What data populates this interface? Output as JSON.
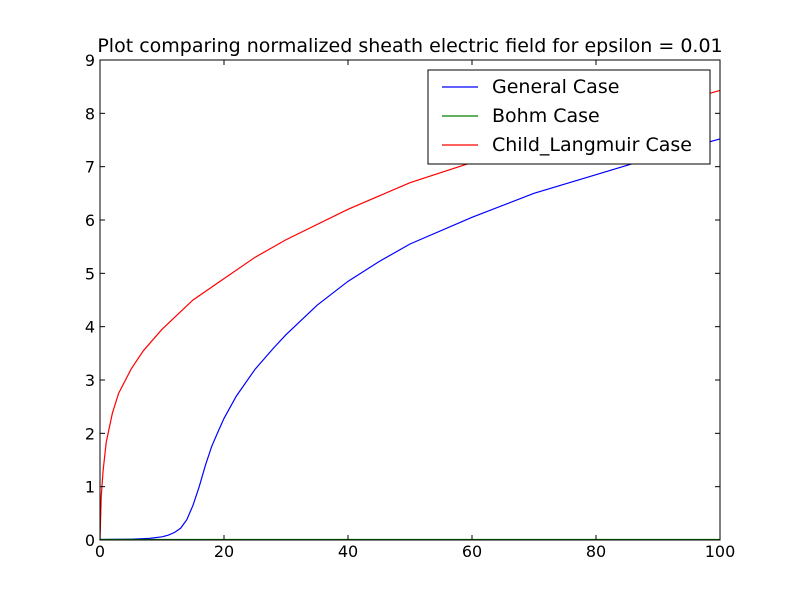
{
  "chart_data": {
    "type": "line",
    "title": "Plot comparing normalized sheath electric field for epsilon = 0.01",
    "xlabel": "",
    "ylabel": "",
    "xlim": [
      0,
      100
    ],
    "ylim": [
      0,
      9
    ],
    "xticks": [
      0,
      20,
      40,
      60,
      80,
      100
    ],
    "yticks": [
      0,
      1,
      2,
      3,
      4,
      5,
      6,
      7,
      8,
      9
    ],
    "grid": false,
    "legend_position": "top-right",
    "series": [
      {
        "name": "General Case",
        "color": "#0000ff",
        "x": [
          0,
          5,
          8,
          10,
          11,
          12,
          13,
          14,
          15,
          16,
          17,
          18,
          19,
          20,
          22,
          25,
          28,
          30,
          35,
          40,
          45,
          50,
          60,
          70,
          80,
          90,
          100
        ],
        "y": [
          0.01,
          0.015,
          0.03,
          0.06,
          0.09,
          0.14,
          0.22,
          0.38,
          0.65,
          1.0,
          1.4,
          1.75,
          2.02,
          2.28,
          2.7,
          3.2,
          3.6,
          3.85,
          4.4,
          4.85,
          5.22,
          5.55,
          6.05,
          6.5,
          6.85,
          7.2,
          7.52
        ]
      },
      {
        "name": "Bohm Case",
        "color": "#008000",
        "x": [
          0,
          20,
          40,
          60,
          80,
          100
        ],
        "y": [
          0.01,
          0.01,
          0.01,
          0.01,
          0.01,
          0.01
        ]
      },
      {
        "name": "Child_Langmuir Case",
        "color": "#ff0000",
        "x": [
          0,
          0.2,
          0.5,
          1,
          2,
          3,
          5,
          7,
          10,
          15,
          20,
          25,
          30,
          40,
          50,
          60,
          70,
          80,
          90,
          100
        ],
        "y": [
          0,
          0.82,
          1.3,
          1.83,
          2.38,
          2.75,
          3.2,
          3.55,
          3.95,
          4.5,
          4.9,
          5.3,
          5.63,
          6.2,
          6.7,
          7.08,
          7.45,
          7.8,
          8.1,
          8.43
        ]
      }
    ]
  }
}
